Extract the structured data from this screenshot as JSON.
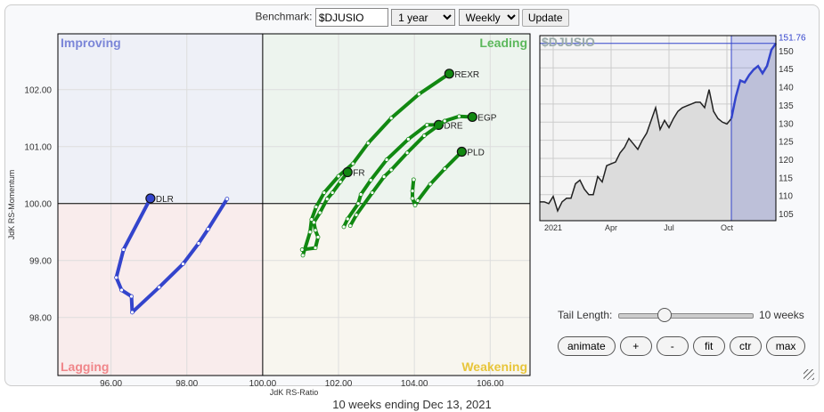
{
  "toolbar": {
    "benchmark_label": "Benchmark:",
    "benchmark_value": "$DJUSIO",
    "period": "1 year",
    "frequency": "Weekly",
    "update_label": "Update"
  },
  "rrg": {
    "xlabel": "JdK RS-Ratio",
    "ylabel": "JdK RS-Momentum",
    "xlim": [
      94.6,
      107.05
    ],
    "ylim": [
      96.98,
      102.98
    ],
    "xticks": [
      "96.00",
      "98.00",
      "100.00",
      "102.00",
      "104.00",
      "106.00"
    ],
    "yticks": [
      "98.00",
      "99.00",
      "100.00",
      "101.00",
      "102.00"
    ],
    "quadrants": {
      "improving": "Improving",
      "leading": "Leading",
      "lagging": "Lagging",
      "weakening": "Weakening"
    },
    "colors": {
      "improving": "#7b86d8",
      "leading": "#5cb85c",
      "lagging": "#f0868a",
      "weakening": "#e8c53a",
      "improving_bg": "#eef0f7",
      "leading_bg": "#edf4ee",
      "lagging_bg": "#f9ecec",
      "weakening_bg": "#f8f6ef"
    },
    "series": [
      {
        "name": "DLR",
        "color": "#3344cc",
        "points": [
          [
            99.06,
            100.08
          ],
          [
            98.56,
            99.55
          ],
          [
            98.31,
            99.3
          ],
          [
            97.9,
            98.94
          ],
          [
            97.27,
            98.53
          ],
          [
            96.56,
            98.09
          ],
          [
            96.54,
            98.37
          ],
          [
            96.28,
            98.48
          ],
          [
            96.14,
            98.7
          ],
          [
            96.33,
            99.19
          ],
          [
            97.04,
            100.09
          ]
        ]
      },
      {
        "name": "REXR",
        "color": "#118811",
        "points": [
          [
            101.06,
            99.09
          ],
          [
            101.25,
            99.5
          ],
          [
            101.29,
            99.72
          ],
          [
            101.41,
            99.94
          ],
          [
            101.62,
            100.19
          ],
          [
            102.0,
            100.48
          ],
          [
            102.38,
            100.7
          ],
          [
            102.78,
            101.06
          ],
          [
            103.39,
            101.5
          ],
          [
            104.12,
            101.92
          ],
          [
            104.92,
            102.28
          ]
        ]
      },
      {
        "name": "FR",
        "color": "#118811",
        "points": [
          [
            101.04,
            99.19
          ],
          [
            101.39,
            99.22
          ],
          [
            101.46,
            99.41
          ],
          [
            101.39,
            99.53
          ],
          [
            101.35,
            99.67
          ],
          [
            101.51,
            99.84
          ],
          [
            101.7,
            100.08
          ],
          [
            101.84,
            100.19
          ],
          [
            102.05,
            100.38
          ],
          [
            102.24,
            100.55
          ]
        ]
      },
      {
        "name": "DRE",
        "color": "#118811",
        "points": [
          [
            102.14,
            99.59
          ],
          [
            102.24,
            99.73
          ],
          [
            102.52,
            100.0
          ],
          [
            102.59,
            100.16
          ],
          [
            102.85,
            100.41
          ],
          [
            103.27,
            100.77
          ],
          [
            103.84,
            101.13
          ],
          [
            104.33,
            101.38
          ],
          [
            104.64,
            101.38
          ]
        ]
      },
      {
        "name": "EGP",
        "color": "#118811",
        "points": [
          [
            102.31,
            99.61
          ],
          [
            102.47,
            99.8
          ],
          [
            102.89,
            100.19
          ],
          [
            103.2,
            100.47
          ],
          [
            103.39,
            100.59
          ],
          [
            103.81,
            100.89
          ],
          [
            104.26,
            101.19
          ],
          [
            104.8,
            101.45
          ],
          [
            105.18,
            101.53
          ],
          [
            105.53,
            101.52
          ]
        ]
      },
      {
        "name": "PLD",
        "color": "#118811",
        "points": [
          [
            103.98,
            100.42
          ],
          [
            103.95,
            100.22
          ],
          [
            103.95,
            100.09
          ],
          [
            104.02,
            99.97
          ],
          [
            104.09,
            100.05
          ],
          [
            104.42,
            100.34
          ],
          [
            104.8,
            100.61
          ],
          [
            105.25,
            100.91
          ]
        ]
      }
    ]
  },
  "benchmark_chart": {
    "title": "$DJUSIO",
    "last_value": "151.76",
    "ylim": [
      102.8,
      153.9
    ],
    "yticks": [
      "105",
      "110",
      "115",
      "120",
      "125",
      "130",
      "135",
      "140",
      "145",
      "150"
    ],
    "xticks": [
      {
        "label": "2021",
        "week": 3
      },
      {
        "label": "Apr",
        "week": 16
      },
      {
        "label": "Jul",
        "week": 29
      },
      {
        "label": "Oct",
        "week": 42
      }
    ],
    "tail_weeks": 10,
    "line_color": "#222222",
    "tail_color": "#3344cc",
    "values": [
      108,
      108,
      107.5,
      109.5,
      105.5,
      108,
      109,
      109,
      113,
      114,
      111.5,
      110,
      110,
      115,
      113.5,
      118,
      118.5,
      119,
      121.5,
      123,
      125.5,
      124,
      122.5,
      125,
      127,
      130.5,
      134,
      128,
      130.5,
      128.5,
      131,
      133,
      134,
      134.5,
      135,
      135.5,
      135.5,
      134,
      139,
      133,
      131,
      130,
      129.5,
      131,
      137,
      141.5,
      141,
      143,
      144.5,
      145.5,
      143.5,
      145.5,
      150,
      151.76
    ]
  },
  "controls": {
    "tail_label": "Tail Length:",
    "tail_value": "10 weeks",
    "tail_fraction": 0.33,
    "buttons": [
      "animate",
      "+",
      "-",
      "fit",
      "ctr",
      "max"
    ]
  },
  "caption": "10 weeks ending Dec 13, 2021"
}
